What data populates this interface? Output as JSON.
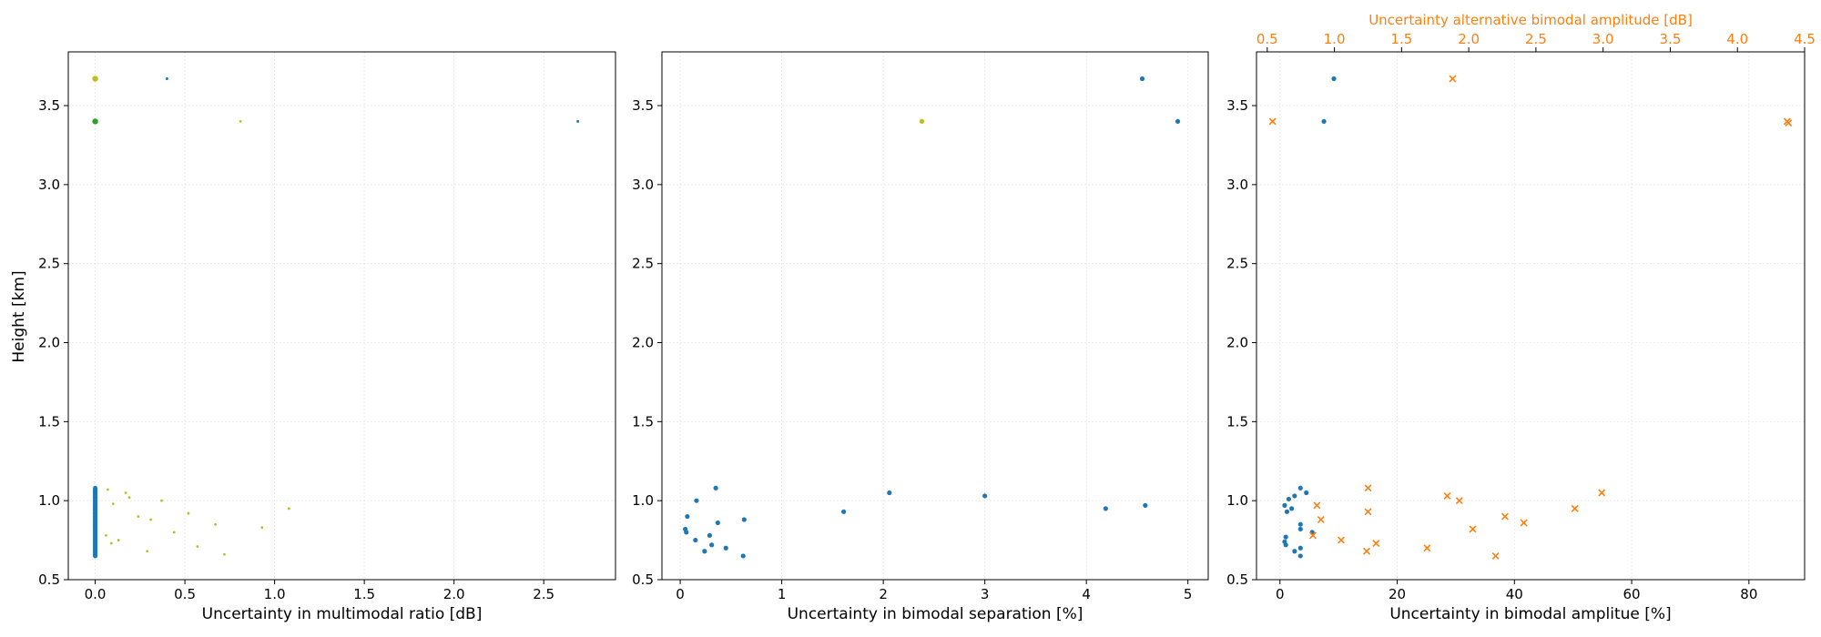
{
  "figure": {
    "shared_ylabel": "Height [km]"
  },
  "chart_data": [
    {
      "type": "scatter",
      "title": "",
      "xlabel": "Uncertainty in multimodal ratio [dB]",
      "ylabel": "Height [km]",
      "xlim": [
        -0.15,
        2.9
      ],
      "ylim": [
        0.5,
        3.84
      ],
      "xticks": [
        0.0,
        0.5,
        1.0,
        1.5,
        2.0,
        2.5
      ],
      "xtick_labels": [
        "0.0",
        "0.5",
        "1.0",
        "1.5",
        "2.0",
        "2.5"
      ],
      "yticks": [
        0.5,
        1.0,
        1.5,
        2.0,
        2.5,
        3.0,
        3.5
      ],
      "ytick_labels": [
        "0.5",
        "1.0",
        "1.5",
        "2.0",
        "2.5",
        "3.0",
        "3.5"
      ],
      "grid": true,
      "colors": {
        "blue": "#1f77b4",
        "olive": "#bcbd22",
        "green": "#2ca02c"
      },
      "series": [
        {
          "color": "#1f77b4",
          "marker": "dot",
          "size": 2.4,
          "x": [
            0,
            0,
            0,
            0,
            0,
            0,
            0,
            0,
            0,
            0,
            0,
            0,
            0,
            0,
            0,
            0,
            0,
            0,
            0,
            0,
            0,
            0,
            0,
            0,
            0,
            0,
            0,
            0,
            0,
            0,
            0,
            0,
            0,
            0,
            0,
            0,
            0,
            0,
            0,
            0,
            0,
            0,
            0,
            0,
            0,
            0,
            0,
            0,
            0,
            0,
            0,
            0,
            0,
            0,
            0,
            0,
            0,
            0,
            0,
            0,
            0,
            0,
            0,
            0,
            0,
            0,
            0,
            0,
            0,
            0,
            0,
            0,
            0,
            0,
            0,
            0,
            0,
            0,
            0,
            0,
            0,
            0,
            0,
            0,
            0,
            0,
            0,
            0,
            0,
            0,
            0,
            0,
            0,
            0,
            0,
            0,
            0,
            0,
            0,
            0,
            0,
            0,
            0,
            0,
            0,
            0,
            0,
            0,
            0,
            0,
            0,
            0
          ],
          "y": [
            0.65,
            0.66,
            0.67,
            0.68,
            0.69,
            0.7,
            0.71,
            0.72,
            0.73,
            0.74,
            0.75,
            0.76,
            0.77,
            0.78,
            0.79,
            0.8,
            0.81,
            0.82,
            0.83,
            0.84,
            0.85,
            0.86,
            0.87,
            0.88,
            0.89,
            0.9,
            0.91,
            0.92,
            0.93,
            0.94,
            0.95,
            0.96,
            0.97,
            0.98,
            0.99,
            1.0,
            1.01,
            1.02,
            1.03,
            1.04,
            1.05,
            1.06,
            1.07,
            1.08,
            0.655,
            0.665,
            0.675,
            0.685,
            0.695,
            0.705,
            0.715,
            0.725,
            0.735,
            0.745,
            0.755,
            0.765,
            0.775,
            0.785,
            0.795,
            0.805,
            0.815,
            0.825,
            0.835,
            0.845,
            0.855,
            0.865,
            0.875,
            0.885,
            0.895,
            0.905,
            0.915,
            0.925,
            0.935,
            0.945,
            0.955,
            0.965,
            0.975,
            0.985,
            0.995,
            1.005,
            1.015,
            1.025,
            1.035,
            1.045,
            1.055,
            1.065,
            1.075,
            0.65,
            0.7,
            0.75,
            0.8,
            0.85,
            0.9,
            0.95,
            1.0,
            1.05,
            0.66,
            0.72,
            0.78,
            0.84,
            0.88,
            0.92,
            0.96,
            1.02,
            1.06,
            0.68,
            0.74,
            0.82,
            0.86,
            0.94,
            0.98,
            1.04
          ]
        },
        {
          "color": "#1f77b4",
          "marker": "dot",
          "size": 1.5,
          "x": [
            0.4,
            2.69
          ],
          "y": [
            3.67,
            3.4
          ]
        },
        {
          "color": "#bcbd22",
          "marker": "dot",
          "size": 1.4,
          "x": [
            0.07,
            0.17,
            0.19,
            0.37,
            0.1,
            0.52,
            0.24,
            0.31,
            0.67,
            0.93,
            1.08,
            0.06,
            0.13,
            0.09,
            0.44,
            0.57,
            0.29,
            0.72,
            0.81
          ],
          "y": [
            1.07,
            1.05,
            1.02,
            1.0,
            0.98,
            0.92,
            0.9,
            0.88,
            0.85,
            0.83,
            0.95,
            0.78,
            0.75,
            0.73,
            0.8,
            0.71,
            0.68,
            0.66,
            3.4
          ]
        },
        {
          "color": "#bcbd22",
          "marker": "dot",
          "size": 3.2,
          "x": [
            0
          ],
          "y": [
            3.67
          ]
        },
        {
          "color": "#2ca02c",
          "marker": "dot",
          "size": 3.2,
          "x": [
            0
          ],
          "y": [
            3.4
          ]
        }
      ]
    },
    {
      "type": "scatter",
      "title": "",
      "xlabel": "Uncertainty in bimodal separation [%]",
      "ylabel": "",
      "xlim": [
        -0.18,
        5.2
      ],
      "ylim": [
        0.5,
        3.84
      ],
      "xticks": [
        0,
        1,
        2,
        3,
        4,
        5
      ],
      "xtick_labels": [
        "0",
        "1",
        "2",
        "3",
        "4",
        "5"
      ],
      "yticks": [
        0.5,
        1.0,
        1.5,
        2.0,
        2.5,
        3.0,
        3.5
      ],
      "ytick_labels": [
        "0.5",
        "1.0",
        "1.5",
        "2.0",
        "2.5",
        "3.0",
        "3.5"
      ],
      "grid": true,
      "series": [
        {
          "color": "#1f77b4",
          "marker": "dot",
          "size": 2.6,
          "x": [
            0.35,
            0.16,
            0.07,
            0.63,
            0.37,
            0.05,
            0.06,
            0.15,
            0.29,
            0.45,
            0.31,
            0.24,
            0.62,
            2.06,
            1.61,
            3.0,
            4.19,
            4.58,
            4.55,
            4.9
          ],
          "y": [
            1.08,
            1.0,
            0.9,
            0.88,
            0.86,
            0.82,
            0.8,
            0.75,
            0.78,
            0.7,
            0.72,
            0.68,
            0.65,
            1.05,
            0.93,
            1.03,
            0.95,
            0.97,
            3.67,
            3.4
          ]
        },
        {
          "color": "#bcbd22",
          "marker": "dot",
          "size": 2.6,
          "x": [
            2.38
          ],
          "y": [
            3.4
          ]
        }
      ]
    },
    {
      "type": "scatter",
      "title": "",
      "xlabel": "Uncertainty in bimodal amplitue [%]",
      "ylabel": "",
      "secondary_xlabel": "Uncertainty alternative bimodal amplitude [dB]",
      "xlim": [
        -4,
        89.5
      ],
      "ylim": [
        0.5,
        3.84
      ],
      "xticks": [
        0,
        20,
        40,
        60,
        80
      ],
      "xtick_labels": [
        "0",
        "20",
        "40",
        "60",
        "80"
      ],
      "secondary_xlim": [
        0.42,
        4.5
      ],
      "secondary_xticks": [
        0.5,
        1.0,
        1.5,
        2.0,
        2.5,
        3.0,
        3.5,
        4.0,
        4.5
      ],
      "secondary_xtick_labels": [
        "0.5",
        "1.0",
        "1.5",
        "2.0",
        "2.5",
        "3.0",
        "3.5",
        "4.0",
        "4.5"
      ],
      "yticks": [
        0.5,
        1.0,
        1.5,
        2.0,
        2.5,
        3.0,
        3.5
      ],
      "ytick_labels": [
        "0.5",
        "1.0",
        "1.5",
        "2.0",
        "2.5",
        "3.0",
        "3.5"
      ],
      "grid": true,
      "colors": {
        "primary": "#1f77b4",
        "secondary": "#ff7f0e"
      },
      "series": [
        {
          "color": "#1f77b4",
          "marker": "dot",
          "size": 2.6,
          "axis": "bottom",
          "x": [
            3.5,
            4.5,
            2.5,
            1.5,
            0.8,
            2.0,
            1.2,
            3.5,
            3.5,
            5.5,
            1.0,
            0.8,
            1.0,
            2.5,
            3.5,
            3.5,
            9.2,
            7.5
          ],
          "y": [
            1.08,
            1.05,
            1.03,
            1.01,
            0.97,
            0.95,
            0.93,
            0.85,
            0.82,
            0.8,
            0.77,
            0.74,
            0.72,
            0.68,
            0.7,
            0.65,
            3.67,
            3.4
          ]
        },
        {
          "color": "#ff7f0e",
          "marker": "x",
          "size": 3.4,
          "axis": "top",
          "x": [
            1.25,
            2.99,
            1.84,
            1.25,
            0.87,
            1.93,
            0.9,
            2.27,
            2.03,
            0.84,
            1.05,
            1.31,
            1.69,
            2.41,
            2.79,
            1.24,
            2.2,
            0.54,
            1.88,
            4.37,
            4.38
          ],
          "y": [
            1.08,
            1.05,
            1.03,
            0.93,
            0.97,
            1.0,
            0.88,
            0.9,
            0.82,
            0.78,
            0.75,
            0.73,
            0.7,
            0.86,
            0.95,
            0.68,
            0.65,
            3.4,
            3.67,
            3.4,
            3.39
          ]
        }
      ]
    }
  ]
}
